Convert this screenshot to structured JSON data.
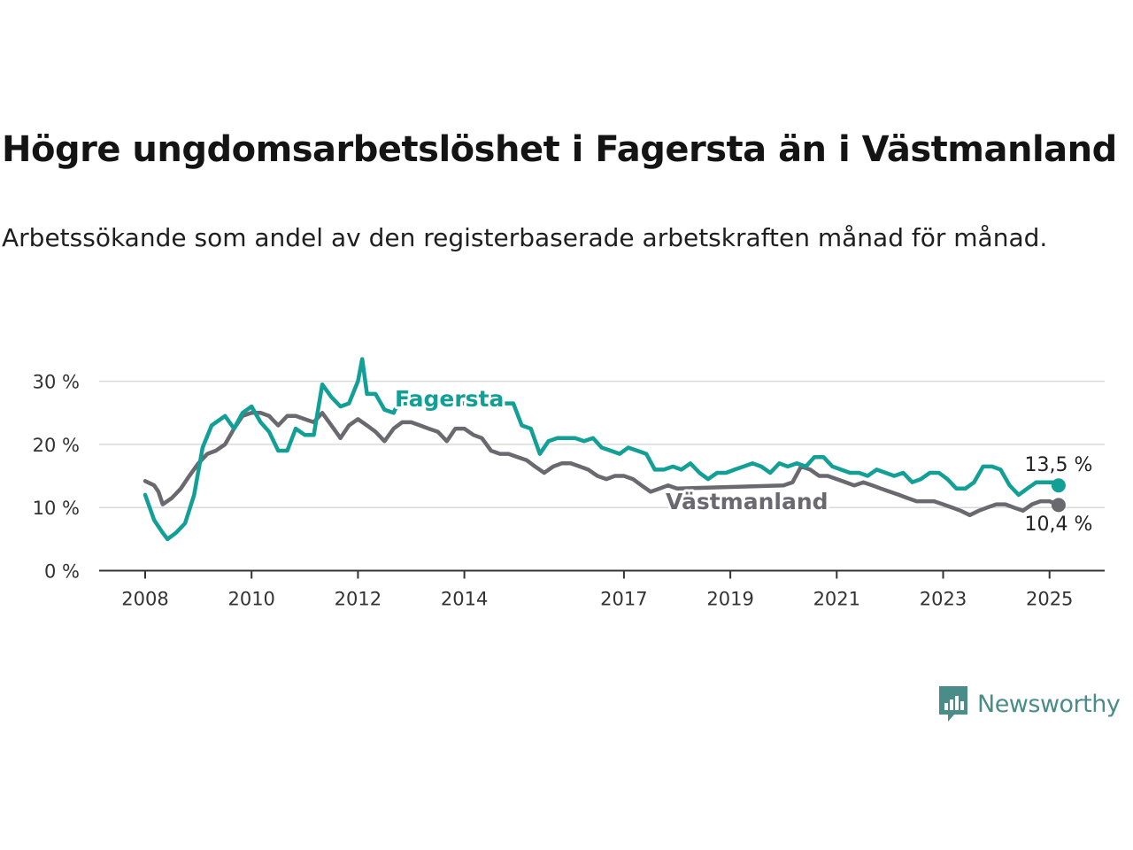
{
  "title": "Högre ungdomsarbetslöshet i Fagersta än i Västmanland",
  "subtitle": "Arbetssökande som andel av den registerbaserade arbetskraften månad för månad.",
  "brand": {
    "name": "Newsworthy",
    "icon": "newsworthy-logo-icon",
    "color": "#4a8c87"
  },
  "chart_data": {
    "type": "line",
    "x_unit": "year",
    "xlim": [
      2007.8,
      2026.1
    ],
    "ylim": [
      0,
      33
    ],
    "y_ticks": [
      0,
      10,
      20,
      30
    ],
    "y_tick_labels": [
      "0 %",
      "10 %",
      "20 %",
      "30 %"
    ],
    "x_ticks": [
      2008,
      2010,
      2012,
      2014,
      2017,
      2019,
      2021,
      2023,
      2025
    ],
    "x_tick_labels": [
      "2008",
      "2010",
      "2012",
      "2014",
      "2017",
      "2019",
      "2021",
      "2023",
      "2025"
    ],
    "grid": "horizontal",
    "series": [
      {
        "name": "Fagersta",
        "color": "#12a096",
        "end_label": "13,5 %",
        "points": [
          [
            2008.0,
            12.0
          ],
          [
            2008.17,
            8.0
          ],
          [
            2008.33,
            6.0
          ],
          [
            2008.42,
            5.0
          ],
          [
            2008.58,
            6.0
          ],
          [
            2008.75,
            7.5
          ],
          [
            2008.92,
            12.0
          ],
          [
            2009.08,
            19.5
          ],
          [
            2009.25,
            23.0
          ],
          [
            2009.5,
            24.5
          ],
          [
            2009.67,
            22.5
          ],
          [
            2009.83,
            25.0
          ],
          [
            2010.0,
            26.0
          ],
          [
            2010.17,
            23.5
          ],
          [
            2010.33,
            22.0
          ],
          [
            2010.5,
            19.0
          ],
          [
            2010.67,
            19.0
          ],
          [
            2010.83,
            22.5
          ],
          [
            2011.0,
            21.5
          ],
          [
            2011.17,
            21.5
          ],
          [
            2011.33,
            29.5
          ],
          [
            2011.5,
            27.5
          ],
          [
            2011.67,
            26.0
          ],
          [
            2011.83,
            26.5
          ],
          [
            2012.0,
            30.0
          ],
          [
            2012.08,
            33.5
          ],
          [
            2012.17,
            28.0
          ],
          [
            2012.33,
            28.0
          ],
          [
            2012.5,
            25.5
          ],
          [
            2012.67,
            25.0
          ],
          [
            2012.75,
            26.5
          ],
          [
            2014.92,
            26.5
          ],
          [
            2015.08,
            23.0
          ],
          [
            2015.25,
            22.5
          ],
          [
            2015.42,
            18.5
          ],
          [
            2015.58,
            20.5
          ],
          [
            2015.75,
            21.0
          ],
          [
            2015.92,
            21.0
          ],
          [
            2016.08,
            21.0
          ],
          [
            2016.25,
            20.5
          ],
          [
            2016.42,
            21.0
          ],
          [
            2016.58,
            19.5
          ],
          [
            2016.75,
            19.0
          ],
          [
            2016.92,
            18.5
          ],
          [
            2017.08,
            19.5
          ],
          [
            2017.25,
            19.0
          ],
          [
            2017.42,
            18.5
          ],
          [
            2017.58,
            16.0
          ],
          [
            2017.75,
            16.0
          ],
          [
            2017.92,
            16.5
          ],
          [
            2018.08,
            16.0
          ],
          [
            2018.25,
            17.0
          ],
          [
            2018.42,
            15.5
          ],
          [
            2018.58,
            14.5
          ],
          [
            2018.75,
            15.5
          ],
          [
            2018.92,
            15.5
          ],
          [
            2019.08,
            16.0
          ],
          [
            2019.25,
            16.5
          ],
          [
            2019.42,
            17.0
          ],
          [
            2019.58,
            16.5
          ],
          [
            2019.75,
            15.5
          ],
          [
            2019.92,
            17.0
          ],
          [
            2020.08,
            16.5
          ],
          [
            2020.25,
            17.0
          ],
          [
            2020.42,
            16.5
          ],
          [
            2020.58,
            18.0
          ],
          [
            2020.75,
            18.0
          ],
          [
            2020.92,
            16.5
          ],
          [
            2021.08,
            16.0
          ],
          [
            2021.25,
            15.5
          ],
          [
            2021.42,
            15.5
          ],
          [
            2021.58,
            15.0
          ],
          [
            2021.75,
            16.0
          ],
          [
            2021.92,
            15.5
          ],
          [
            2022.08,
            15.0
          ],
          [
            2022.25,
            15.5
          ],
          [
            2022.42,
            14.0
          ],
          [
            2022.58,
            14.5
          ],
          [
            2022.75,
            15.5
          ],
          [
            2022.92,
            15.5
          ],
          [
            2023.08,
            14.5
          ],
          [
            2023.25,
            13.0
          ],
          [
            2023.42,
            13.0
          ],
          [
            2023.58,
            14.0
          ],
          [
            2023.75,
            16.5
          ],
          [
            2023.92,
            16.5
          ],
          [
            2024.08,
            16.0
          ],
          [
            2024.25,
            13.5
          ],
          [
            2024.42,
            12.0
          ],
          [
            2024.58,
            13.0
          ],
          [
            2024.75,
            14.0
          ],
          [
            2024.92,
            14.0
          ],
          [
            2025.08,
            14.0
          ],
          [
            2025.17,
            13.5
          ]
        ]
      },
      {
        "name": "Västmanland",
        "color": "#6b6970",
        "end_label": "10,4 %",
        "points": [
          [
            2008.0,
            14.2
          ],
          [
            2008.17,
            13.5
          ],
          [
            2008.25,
            12.5
          ],
          [
            2008.33,
            10.5
          ],
          [
            2008.5,
            11.5
          ],
          [
            2008.67,
            13.0
          ],
          [
            2008.83,
            15.0
          ],
          [
            2009.0,
            17.0
          ],
          [
            2009.17,
            18.5
          ],
          [
            2009.33,
            19.0
          ],
          [
            2009.5,
            20.0
          ],
          [
            2009.67,
            22.5
          ],
          [
            2009.83,
            24.5
          ],
          [
            2010.0,
            25.0
          ],
          [
            2010.17,
            25.0
          ],
          [
            2010.33,
            24.5
          ],
          [
            2010.5,
            23.0
          ],
          [
            2010.67,
            24.5
          ],
          [
            2010.83,
            24.5
          ],
          [
            2011.0,
            24.0
          ],
          [
            2011.17,
            23.5
          ],
          [
            2011.33,
            25.0
          ],
          [
            2011.5,
            23.0
          ],
          [
            2011.67,
            21.0
          ],
          [
            2011.83,
            23.0
          ],
          [
            2012.0,
            24.0
          ],
          [
            2012.17,
            23.0
          ],
          [
            2012.33,
            22.0
          ],
          [
            2012.5,
            20.5
          ],
          [
            2012.67,
            22.5
          ],
          [
            2012.83,
            23.5
          ],
          [
            2013.0,
            23.5
          ],
          [
            2013.17,
            23.0
          ],
          [
            2013.33,
            22.5
          ],
          [
            2013.5,
            22.0
          ],
          [
            2013.67,
            20.5
          ],
          [
            2013.83,
            22.5
          ],
          [
            2014.0,
            22.5
          ],
          [
            2014.17,
            21.5
          ],
          [
            2014.33,
            21.0
          ],
          [
            2014.5,
            19.0
          ],
          [
            2014.67,
            18.5
          ],
          [
            2014.83,
            18.5
          ],
          [
            2015.0,
            18.0
          ],
          [
            2015.17,
            17.5
          ],
          [
            2015.33,
            16.5
          ],
          [
            2015.5,
            15.5
          ],
          [
            2015.67,
            16.5
          ],
          [
            2015.83,
            17.0
          ],
          [
            2016.0,
            17.0
          ],
          [
            2016.17,
            16.5
          ],
          [
            2016.33,
            16.0
          ],
          [
            2016.5,
            15.0
          ],
          [
            2016.67,
            14.5
          ],
          [
            2016.83,
            15.0
          ],
          [
            2017.0,
            15.0
          ],
          [
            2017.17,
            14.5
          ],
          [
            2017.33,
            13.5
          ],
          [
            2017.5,
            12.5
          ],
          [
            2017.67,
            13.0
          ],
          [
            2017.83,
            13.5
          ],
          [
            2018.0,
            13.0
          ],
          [
            2020.0,
            13.5
          ],
          [
            2020.17,
            14.0
          ],
          [
            2020.33,
            16.5
          ],
          [
            2020.5,
            16.0
          ],
          [
            2020.67,
            15.0
          ],
          [
            2020.83,
            15.0
          ],
          [
            2021.0,
            14.5
          ],
          [
            2021.17,
            14.0
          ],
          [
            2021.33,
            13.5
          ],
          [
            2021.5,
            14.0
          ],
          [
            2021.67,
            13.5
          ],
          [
            2021.83,
            13.0
          ],
          [
            2022.0,
            12.5
          ],
          [
            2022.17,
            12.0
          ],
          [
            2022.33,
            11.5
          ],
          [
            2022.5,
            11.0
          ],
          [
            2022.67,
            11.0
          ],
          [
            2022.83,
            11.0
          ],
          [
            2023.0,
            10.5
          ],
          [
            2023.17,
            10.0
          ],
          [
            2023.33,
            9.5
          ],
          [
            2023.5,
            8.8
          ],
          [
            2023.67,
            9.5
          ],
          [
            2023.83,
            10.0
          ],
          [
            2024.0,
            10.5
          ],
          [
            2024.17,
            10.5
          ],
          [
            2024.33,
            10.0
          ],
          [
            2024.5,
            9.5
          ],
          [
            2024.67,
            10.5
          ],
          [
            2024.83,
            11.0
          ],
          [
            2025.0,
            11.0
          ],
          [
            2025.17,
            10.4
          ]
        ]
      }
    ]
  }
}
